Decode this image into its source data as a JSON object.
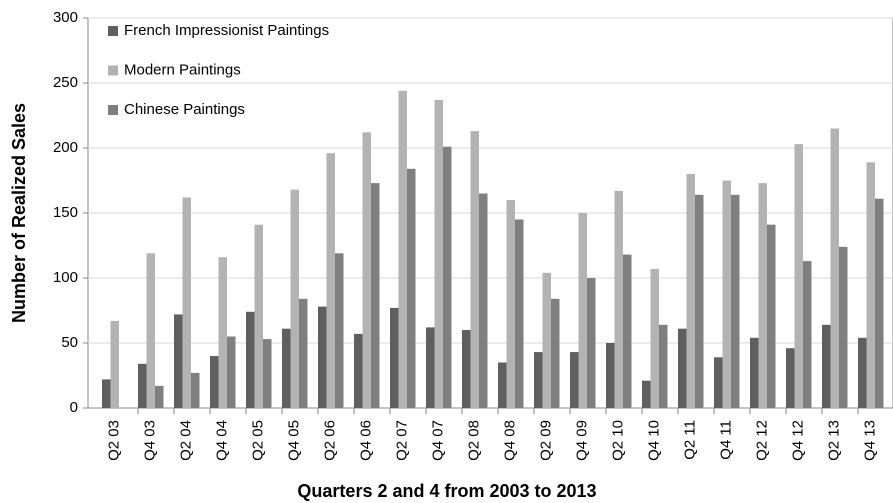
{
  "chart_data": {
    "type": "bar",
    "x_label": "Quarters 2 and 4 from 2003 to 2013",
    "y_label": "Number of Realized  Sales",
    "categories": [
      "Q2 03",
      "Q4 03",
      "Q2 04",
      "Q4 04",
      "Q2 05",
      "Q4 05",
      "Q2 06",
      "Q4 06",
      "Q2 07",
      "Q4 07",
      "Q2 08",
      "Q4 08",
      "Q2 09",
      "Q4 09",
      "Q2 10",
      "Q4 10",
      "Q2 11",
      "Q4 11",
      "Q2 12",
      "Q4 12",
      "Q2 13",
      "Q4 13"
    ],
    "series": [
      {
        "name": "French Impressionist Paintings",
        "color": "#5f5f5f",
        "values": [
          22,
          34,
          72,
          40,
          74,
          61,
          78,
          57,
          77,
          62,
          60,
          35,
          43,
          43,
          50,
          21,
          61,
          39,
          54,
          46,
          64,
          54
        ]
      },
      {
        "name": "Modern Paintings",
        "color": "#b3b3b3",
        "values": [
          67,
          119,
          162,
          116,
          141,
          168,
          196,
          212,
          244,
          237,
          213,
          160,
          104,
          150,
          167,
          107,
          180,
          175,
          173,
          203,
          215,
          189
        ]
      },
      {
        "name": "Chinese Paintings",
        "color": "#7f7f7f",
        "values": [
          0,
          17,
          27,
          55,
          53,
          84,
          119,
          173,
          184,
          201,
          165,
          145,
          84,
          100,
          118,
          64,
          164,
          164,
          141,
          113,
          124,
          161
        ]
      }
    ],
    "ylim": [
      0,
      300
    ],
    "yticks": [
      0,
      50,
      100,
      150,
      200,
      250,
      300
    ],
    "grid": true,
    "legend": "top-left"
  }
}
